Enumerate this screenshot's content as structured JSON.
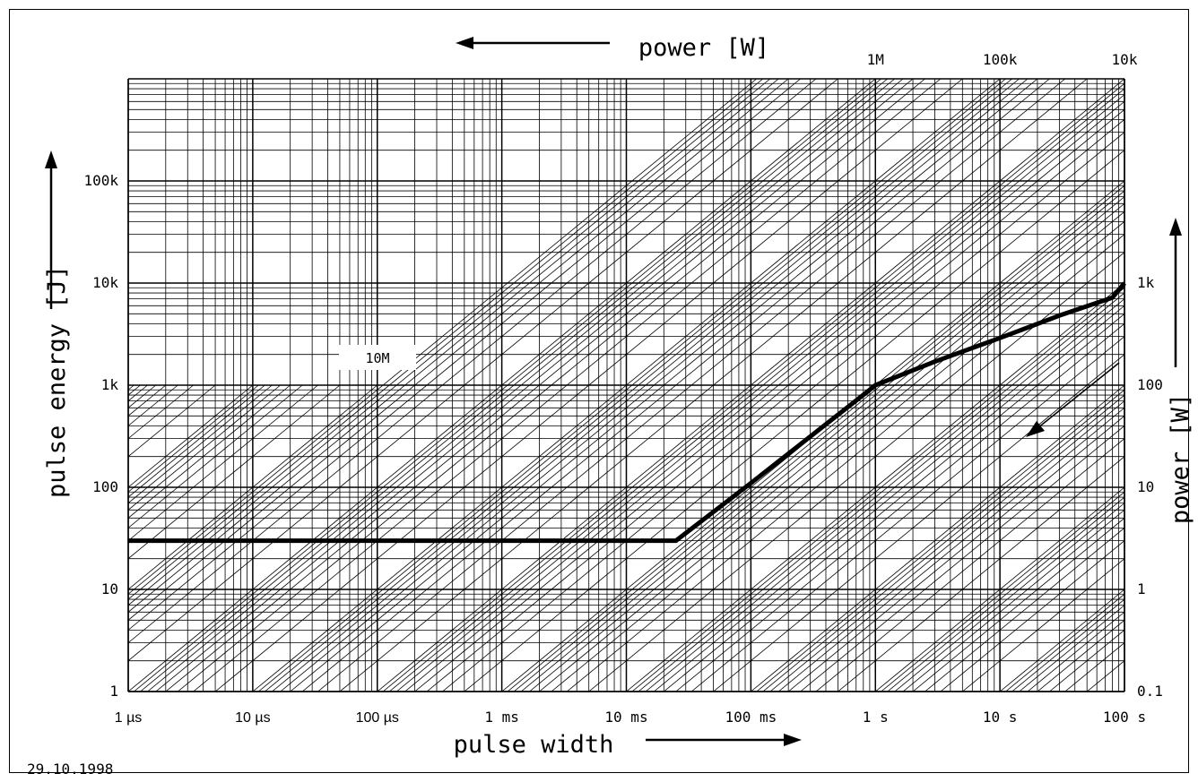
{
  "chart_data": {
    "type": "line",
    "title": "",
    "xlabel": "pulse width",
    "ylabel": "pulse energy [J]",
    "top_axis_label": "power [W]",
    "right_axis_label": "power [W]",
    "x_scale": "log",
    "y_scale": "log",
    "xlim": [
      1e-06,
      100
    ],
    "ylim": [
      1,
      1000000
    ],
    "grid": true,
    "x_ticks": [
      {
        "value": 1e-06,
        "label": "1 µs"
      },
      {
        "value": 1e-05,
        "label": "10 µs"
      },
      {
        "value": 0.0001,
        "label": "100 µs"
      },
      {
        "value": 0.001,
        "label": "1 ms"
      },
      {
        "value": 0.01,
        "label": "10 ms"
      },
      {
        "value": 0.1,
        "label": "100 ms"
      },
      {
        "value": 1,
        "label": "1 s"
      },
      {
        "value": 10,
        "label": "10 s"
      },
      {
        "value": 100,
        "label": "100 s"
      }
    ],
    "y_ticks": [
      {
        "value": 1,
        "label": "1"
      },
      {
        "value": 10,
        "label": "10"
      },
      {
        "value": 100,
        "label": "100"
      },
      {
        "value": 1000,
        "label": "1k"
      },
      {
        "value": 10000,
        "label": "10k"
      },
      {
        "value": 100000,
        "label": "100k"
      }
    ],
    "right_power_ticks": [
      {
        "value": 1000,
        "label": "1k"
      },
      {
        "value": 100,
        "label": "100"
      },
      {
        "value": 10,
        "label": "10"
      },
      {
        "value": 1,
        "label": "1"
      },
      {
        "value": 0.1,
        "label": "0.1"
      }
    ],
    "top_power_ticks": [
      {
        "value": 1000000,
        "label": "1M"
      },
      {
        "value": 100000,
        "label": "100k"
      },
      {
        "value": 10000,
        "label": "10k"
      }
    ],
    "inline_power_label": {
      "value": 10000000,
      "label": "10M"
    },
    "series": [
      {
        "x": [
          1e-06,
          0.025,
          0.1,
          0.85,
          1,
          3,
          10,
          30,
          80,
          100
        ],
        "y": [
          30,
          30,
          110,
          850,
          1000,
          1700,
          2900,
          4800,
          7200,
          10000
        ]
      }
    ],
    "date_stamp": "29.10.1998"
  }
}
